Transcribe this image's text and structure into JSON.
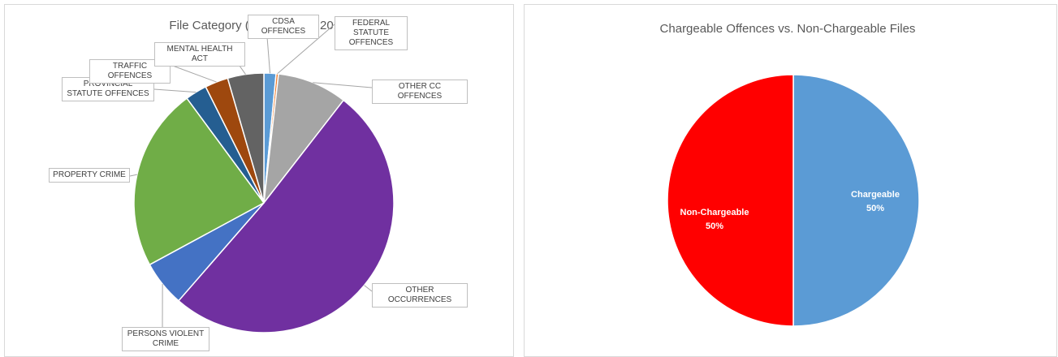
{
  "chart_data": [
    {
      "type": "pie",
      "title": "File Category (UCR Type) - 2018 Q2",
      "categories": [
        "CDSA OFFENCES",
        "FEDERAL STATUTE OFFENCES",
        "OTHER CC OFFENCES",
        "OTHER OCCURRENCES",
        "PERSONS VIOLENT CRIME",
        "PROPERTY CRIME",
        "PROVINCIAL STATUTE OFFENCES",
        "TRAFFIC OFFENCES",
        "MENTAL HEALTH ACT"
      ],
      "values": [
        1.5,
        0.3,
        8.7,
        50.9,
        5.7,
        22.8,
        2.7,
        2.9,
        4.5
      ],
      "colors": [
        "#5b9bd5",
        "#ed7d31",
        "#a5a5a5",
        "#7030a0",
        "#4472c4",
        "#70ad47",
        "#255e91",
        "#9e480e",
        "#636363"
      ]
    },
    {
      "type": "pie",
      "title": "Chargeable Offences vs. Non-Chargeable Files",
      "categories": [
        "Chargeable",
        "Non-Chargeable"
      ],
      "values": [
        50,
        50
      ],
      "value_labels": [
        "50%",
        "50%"
      ],
      "colors": [
        "#5b9bd5",
        "#ff0000"
      ]
    }
  ]
}
